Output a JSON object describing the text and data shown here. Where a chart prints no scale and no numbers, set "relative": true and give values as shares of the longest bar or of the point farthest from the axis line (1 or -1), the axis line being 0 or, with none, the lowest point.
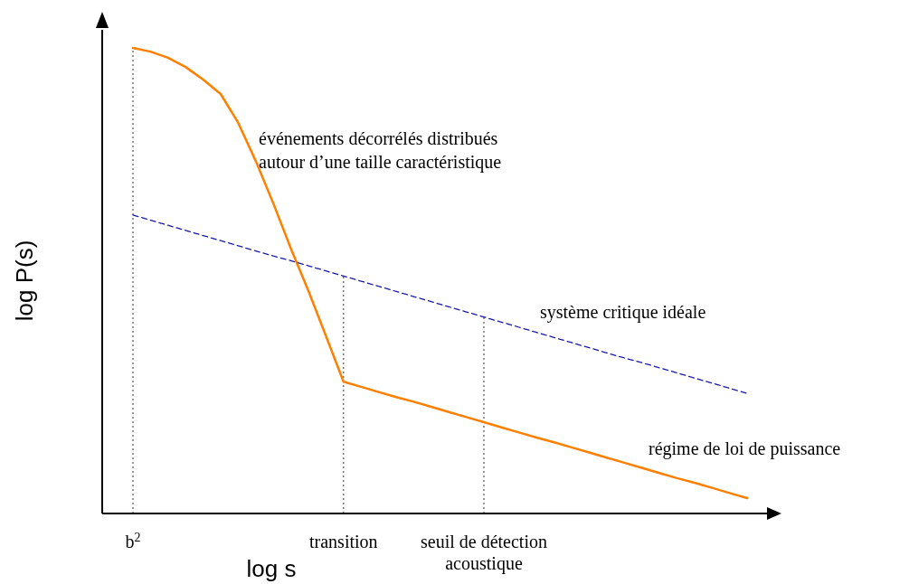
{
  "chart_data": {
    "type": "line",
    "relative": true,
    "xlabel": "log s",
    "ylabel": "log P(s)",
    "categories": [
      "b$^{2}$",
      null,
      null,
      null,
      null,
      null,
      null,
      null,
      null,
      null,
      null,
      null,
      "transition",
      null,
      null,
      null,
      null,
      null,
      null,
      null,
      "seuil de détection acoustique",
      null,
      null,
      null,
      null,
      null,
      null,
      null,
      null,
      null,
      null,
      null,
      null,
      null,
      null,
      null
    ],
    "series": [
      {
        "color": "#ff8000",
        "values": [
          1.0,
          0.992,
          0.979,
          0.959,
          0.932,
          0.901,
          0.839,
          0.757,
          0.666,
          0.569,
          0.478,
          0.381,
          0.283,
          0.272,
          0.261,
          0.25,
          0.24,
          0.229,
          0.218,
          0.207,
          0.196,
          0.185,
          0.174,
          0.163,
          0.153,
          0.142,
          0.131,
          0.12,
          0.109,
          0.098,
          0.087,
          0.076,
          0.066,
          0.055,
          0.044,
          0.033
        ]
      },
      {
        "color": "#1a1aa6",
        "line_style": "dashed",
        "values": [
          0.641,
          0.63,
          0.619,
          0.608,
          0.597,
          0.586,
          0.575,
          0.564,
          0.553,
          0.543,
          0.532,
          0.521,
          0.51,
          0.499,
          0.488,
          0.477,
          0.466,
          0.455,
          0.444,
          0.433,
          0.422,
          0.411,
          0.4,
          0.389,
          0.378,
          0.367,
          0.356,
          0.345,
          0.334,
          0.324,
          0.313,
          0.302,
          0.291,
          0.28,
          0.269,
          0.258
        ]
      }
    ],
    "ref_lines": [
      {
        "axis": "x",
        "value": "b$^{2}$",
        "line_style": "dotted",
        "color": "#000000"
      },
      {
        "axis": "x",
        "value": "transition",
        "line_style": "dotted",
        "color": "#000000"
      },
      {
        "axis": "x",
        "value": "seuil de détection acoustique",
        "line_style": "dotted",
        "color": "#000000"
      }
    ],
    "annotations": [
      "événements décorrélés distribués\nautour d’une taille caractéristique",
      "système critique idéale",
      "régime de loi de puissance"
    ]
  }
}
